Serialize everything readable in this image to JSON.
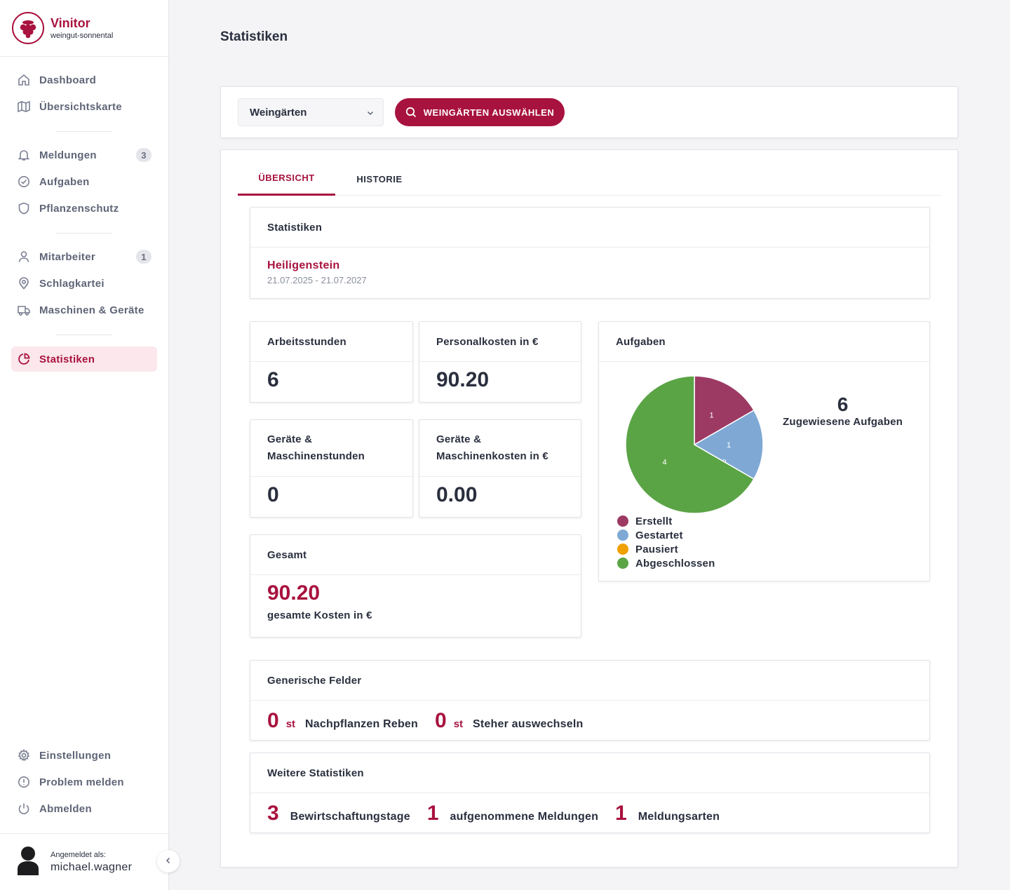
{
  "brand": {
    "name": "Vinitor",
    "sub": "weingut-sonnental"
  },
  "nav": {
    "dashboard": "Dashboard",
    "map": "Übersichtskarte",
    "reports": "Meldungen",
    "reports_count": "3",
    "tasks": "Aufgaben",
    "plant_protection": "Pflanzenschutz",
    "employees": "Mitarbeiter",
    "employees_count": "1",
    "field_index": "Schlagkartei",
    "machines": "Maschinen & Geräte",
    "statistics": "Statistiken",
    "settings": "Einstellungen",
    "report_problem": "Problem melden",
    "logout": "Abmelden"
  },
  "user": {
    "label": "Angemeldet als:",
    "name": "michael.wagner"
  },
  "page": {
    "title": "Statistiken"
  },
  "filter": {
    "select_value": "Weingärten",
    "button_label": "WEINGÄRTEN AUSWÄHLEN"
  },
  "tabs": {
    "overview": "ÜBERSICHT",
    "history": "HISTORIE"
  },
  "stats_header": {
    "title": "Statistiken",
    "vineyard": "Heiligenstein",
    "date_range": "21.07.2025 - 21.07.2027"
  },
  "cards": {
    "work_hours": {
      "title": "Arbeitsstunden",
      "value": "6"
    },
    "personnel_cost": {
      "title": "Personalkosten in €",
      "value": "90.20"
    },
    "machine_hours": {
      "title_line1": "Geräte &",
      "title_line2": "Maschinenstunden",
      "value": "0"
    },
    "machine_cost": {
      "title_line1": "Geräte &",
      "title_line2": "Maschinenkosten in €",
      "value": "0.00"
    },
    "total": {
      "title": "Gesamt",
      "value": "90.20",
      "caption": "gesamte Kosten in €"
    }
  },
  "tasks_card": {
    "title": "Aufgaben",
    "count": "6",
    "count_label": "Zugewiesene Aufgaben"
  },
  "chart_data": {
    "type": "pie",
    "title": "Aufgaben",
    "labels": [
      "Erstellt",
      "Gestartet",
      "Pausiert",
      "Abgeschlossen"
    ],
    "values": [
      1,
      1,
      0,
      4
    ],
    "colors": [
      "#9c3a64",
      "#7fa9d4",
      "#f0a000",
      "#5ba446"
    ],
    "legend": "bottom"
  },
  "generic_fields": {
    "title": "Generische Felder",
    "items": [
      {
        "value": "0",
        "unit": "st",
        "label": "Nachpflanzen Reben"
      },
      {
        "value": "0",
        "unit": "st",
        "label": "Steher auswechseln"
      }
    ]
  },
  "further_stats": {
    "title": "Weitere Statistiken",
    "items": [
      {
        "value": "3",
        "label": "Bewirtschaftungstage"
      },
      {
        "value": "1",
        "label": "aufgenommene Meldungen"
      },
      {
        "value": "1",
        "label": "Meldungsarten"
      }
    ]
  }
}
